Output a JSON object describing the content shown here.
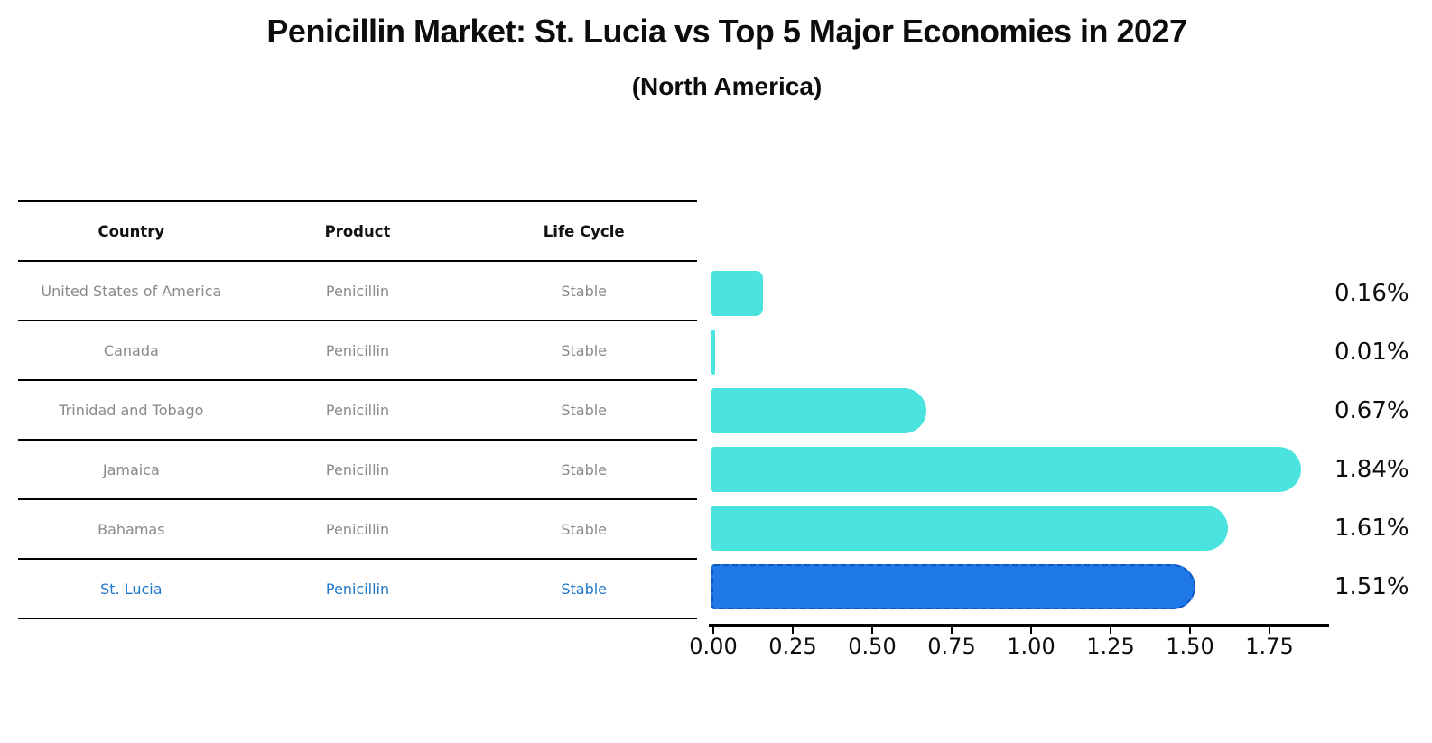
{
  "title": "Penicillin Market: St. Lucia vs Top 5 Major Economies in 2027",
  "subtitle": "(North America)",
  "table": {
    "headers": [
      "Country",
      "Product",
      "Life Cycle"
    ],
    "rows": [
      {
        "country": "United States of America",
        "product": "Penicillin",
        "life_cycle": "Stable",
        "highlighted": false
      },
      {
        "country": "Canada",
        "product": "Penicillin",
        "life_cycle": "Stable",
        "highlighted": false
      },
      {
        "country": "Trinidad and Tobago",
        "product": "Penicillin",
        "life_cycle": "Stable",
        "highlighted": false
      },
      {
        "country": "Jamaica",
        "product": "Penicillin",
        "life_cycle": "Stable",
        "highlighted": false
      },
      {
        "country": "Bahamas",
        "product": "Penicillin",
        "life_cycle": "Stable",
        "highlighted": false
      },
      {
        "country": "St. Lucia",
        "product": "Penicillin",
        "life_cycle": "Stable",
        "highlighted": true
      }
    ]
  },
  "chart_data": {
    "type": "bar",
    "orientation": "horizontal",
    "categories": [
      "United States of America",
      "Canada",
      "Trinidad and Tobago",
      "Jamaica",
      "Bahamas",
      "St. Lucia"
    ],
    "values": [
      0.16,
      0.01,
      0.67,
      1.84,
      1.61,
      1.51
    ],
    "value_labels": [
      "0.16%",
      "0.01%",
      "0.67%",
      "1.84%",
      "1.61%",
      "1.51%"
    ],
    "x_ticks": [
      "0.00",
      "0.25",
      "0.50",
      "0.75",
      "1.00",
      "1.25",
      "1.50",
      "1.75"
    ],
    "x_tick_values": [
      0.0,
      0.25,
      0.5,
      0.75,
      1.0,
      1.25,
      1.5,
      1.75
    ],
    "xlim": [
      0,
      1.93
    ],
    "grid": false,
    "legend": "none",
    "highlight_index": 5,
    "bar_color": "#4AE3DE",
    "highlight_color": "#1E78E8",
    "highlight_border_color": "#1256C0"
  },
  "colors": {
    "title_text": "#0d0d0d",
    "table_text": "#8a8a8a",
    "table_header_text": "#111111",
    "highlight_text": "#1e77c8",
    "axis": "#000000"
  }
}
